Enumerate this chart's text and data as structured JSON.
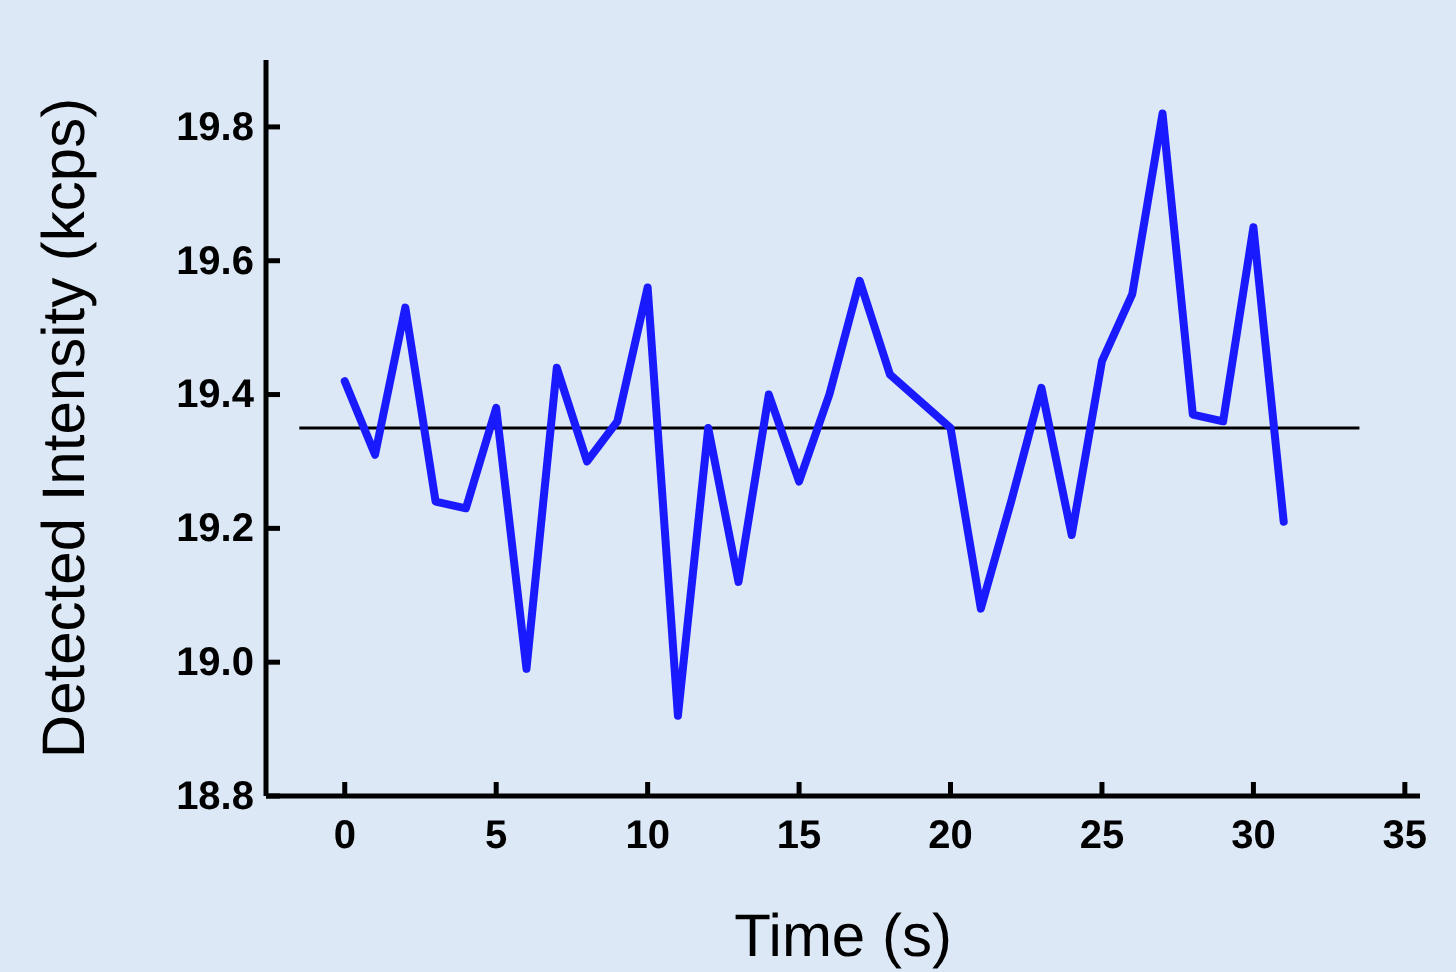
{
  "chart_data": {
    "type": "line",
    "xlabel": "Time (s)",
    "ylabel": "Detected Intensity (kcps)",
    "x": [
      0,
      1,
      2,
      3,
      4,
      5,
      6,
      7,
      8,
      9,
      10,
      11,
      12,
      13,
      14,
      15,
      16,
      17,
      18,
      19,
      20,
      21,
      22,
      23,
      24,
      25,
      26,
      27,
      28,
      29,
      30,
      31
    ],
    "series": [
      {
        "color": "#1a1aff",
        "values": [
          19.42,
          19.31,
          19.53,
          19.24,
          19.23,
          19.38,
          18.99,
          19.44,
          19.3,
          19.36,
          19.56,
          18.92,
          19.35,
          19.12,
          19.4,
          19.27,
          19.4,
          19.57,
          19.43,
          19.39,
          19.35,
          19.08,
          19.24,
          19.41,
          19.19,
          19.45,
          19.55,
          19.82,
          19.37,
          19.36,
          19.65,
          19.21
        ]
      }
    ],
    "xlim": [
      -2.6,
      35.5
    ],
    "ylim": [
      18.8,
      19.9
    ],
    "xticks": [
      0,
      5,
      10,
      15,
      20,
      25,
      30,
      35
    ],
    "yticks": [
      {
        "value": 18.8,
        "label": "18.8"
      },
      {
        "value": 19.0,
        "label": "19.0"
      },
      {
        "value": 19.2,
        "label": "19.2"
      },
      {
        "value": 19.4,
        "label": "19.4"
      },
      {
        "value": 19.6,
        "label": "19.6"
      },
      {
        "value": 19.8,
        "label": "19.8"
      }
    ],
    "ref_lines": [
      {
        "axis": "y",
        "value": 19.35,
        "color": "#000000"
      }
    ],
    "grid": false,
    "marker": "none",
    "line_style": "solid"
  }
}
